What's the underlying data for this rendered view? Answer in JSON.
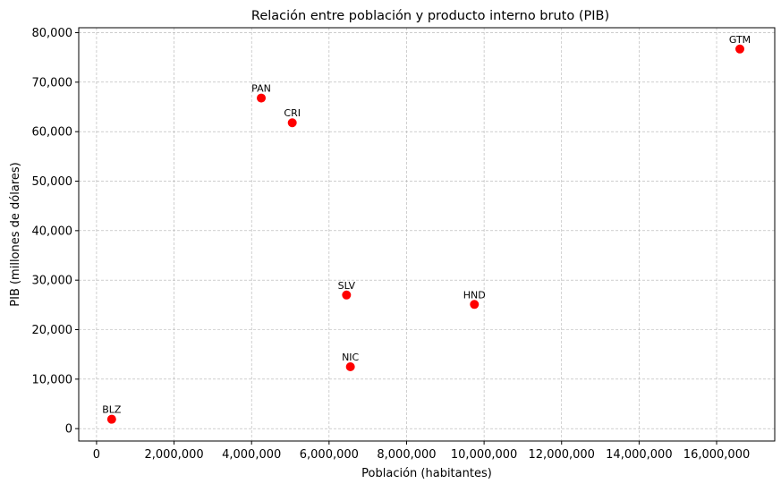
{
  "chart_data": {
    "type": "scatter",
    "title": "Relación entre población y producto interno bruto (PIB)",
    "xlabel": "Población (habitantes)",
    "ylabel": "PIB (millones de dólares)",
    "xlim": [
      -460000,
      17500000
    ],
    "ylim": [
      -2500,
      81000
    ],
    "xticks": [
      0,
      2000000,
      4000000,
      6000000,
      8000000,
      10000000,
      12000000,
      14000000,
      16000000
    ],
    "xtick_labels": [
      "0",
      "2,000,000",
      "4,000,000",
      "6,000,000",
      "8,000,000",
      "10,000,000",
      "12,000,000",
      "14,000,000",
      "16,000,000"
    ],
    "yticks": [
      0,
      10000,
      20000,
      30000,
      40000,
      50000,
      60000,
      70000,
      80000
    ],
    "ytick_labels": [
      "0",
      "10,000",
      "20,000",
      "30,000",
      "40,000",
      "50,000",
      "60,000",
      "70,000",
      "80,000"
    ],
    "grid": true,
    "marker_color": "#ff0000",
    "points": [
      {
        "label": "BLZ",
        "x": 390000,
        "y": 1900
      },
      {
        "label": "PAN",
        "x": 4250000,
        "y": 66800
      },
      {
        "label": "CRI",
        "x": 5050000,
        "y": 61800
      },
      {
        "label": "SLV",
        "x": 6450000,
        "y": 27000
      },
      {
        "label": "NIC",
        "x": 6550000,
        "y": 12500
      },
      {
        "label": "HND",
        "x": 9750000,
        "y": 25100
      },
      {
        "label": "GTM",
        "x": 16600000,
        "y": 76700
      }
    ]
  }
}
